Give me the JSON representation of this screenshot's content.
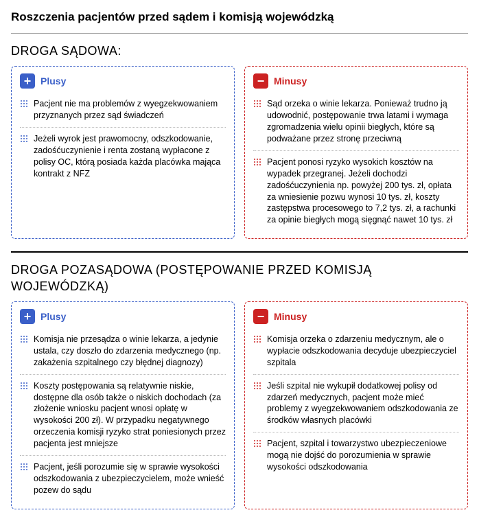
{
  "title": "Roszczenia pacjentów przed sądem i komisją wojewódzką",
  "colors": {
    "plus_accent": "#3a5fc8",
    "minus_accent": "#cc2222",
    "background": "#ffffff",
    "text": "#000000",
    "divider": "#bbbbbb"
  },
  "sections": [
    {
      "heading": "DROGA SĄDOWA:",
      "plus": {
        "label": "Plusy",
        "items": [
          "Pacjent nie ma problemów z wyegzekwowaniem przyznanych przez sąd świadczeń",
          "Jeżeli wyrok jest prawomocny, odszkodowanie, zadośćuczynienie i renta zostaną wypłacone z polisy OC, którą posiada każda placówka mająca kontrakt z NFZ"
        ]
      },
      "minus": {
        "label": "Minusy",
        "items": [
          "Sąd orzeka o winie lekarza. Ponieważ trudno ją udowodnić, postępowanie trwa latami i wymaga zgromadzenia wielu opinii biegłych, które są podważane przez stronę przeciwną",
          "Pacjent ponosi ryzyko wysokich kosztów na wypadek przegranej. Jeżeli dochodzi zadośćuczynienia np. powyżej 200 tys. zł, opłata za wniesienie pozwu wynosi 10 tys. zł, koszty zastępstwa procesowego to 7,2 tys. zł, a rachunki za opinie biegłych mogą sięgnąć nawet 10 tys. zł"
        ]
      }
    },
    {
      "heading": "DROGA POZASĄDOWA (POSTĘPOWANIE PRZED KOMISJĄ WOJEWÓDZKĄ)",
      "plus": {
        "label": "Plusy",
        "items": [
          "Komisja nie przesądza o winie lekarza, a jedynie ustala, czy doszło do zdarzenia medycznego (np. zakażenia szpitalnego czy błędnej diagnozy)",
          "Koszty postępowania są relatywnie niskie, dostępne dla osób także o niskich dochodach (za złożenie wniosku pacjent wnosi opłatę w wysokości 200 zł). W przypadku negatywnego orzeczenia komisji ryzyko strat poniesionych przez pacjenta jest mniejsze",
          "Pacjent, jeśli porozumie się w sprawie wysokości odszkodowania z ubezpieczycielem, może wnieść pozew do sądu"
        ]
      },
      "minus": {
        "label": "Minusy",
        "items": [
          "Komisja orzeka o zdarzeniu medycznym, ale o wypłacie odszkodowania decyduje ubezpieczyciel szpitala",
          "Jeśli szpital nie wykupił dodatkowej polisy od zdarzeń medycznych, pacjent może mieć problemy z wyegzekwowaniem odszkodowania ze środków własnych placówki",
          "Pacjent, szpital i towarzystwo ubezpieczeniowe mogą nie dojść do porozumienia w sprawie wysokości odszkodowania"
        ]
      }
    }
  ]
}
